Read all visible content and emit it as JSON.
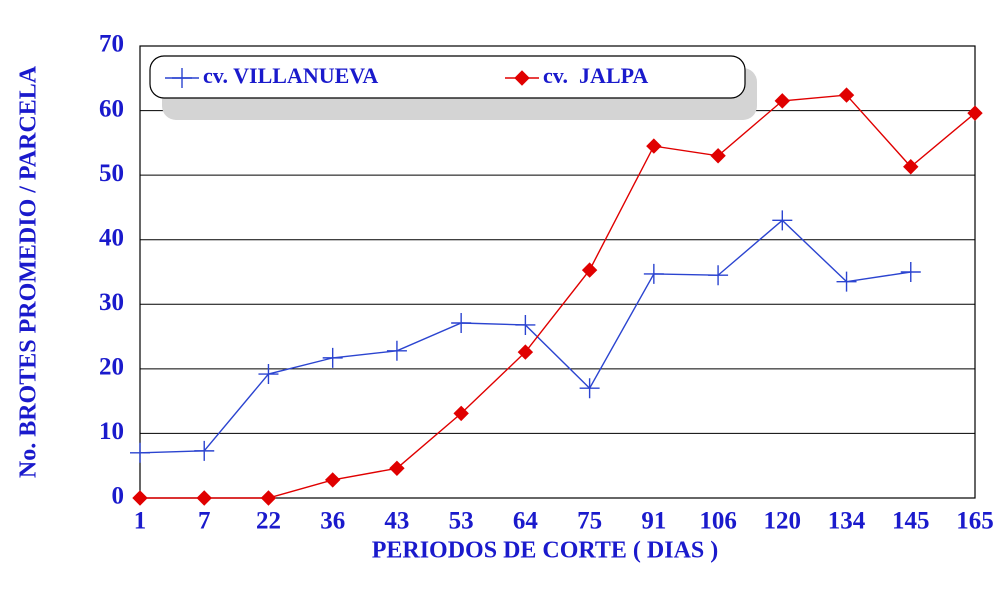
{
  "chart_data": {
    "type": "line",
    "xlabel": "PERIODOS  DE  CORTE ( DIAS )",
    "ylabel": "No. BROTES PROMEDIO / PARCELA",
    "categories": [
      "1",
      "7",
      "22",
      "36",
      "43",
      "53",
      "64",
      "75",
      "91",
      "106",
      "120",
      "134",
      "145",
      "165"
    ],
    "series": [
      {
        "name": "cv. VILLANUEVA",
        "color": "#2b44d0",
        "marker": "plus",
        "values": [
          7,
          7.3,
          19.2,
          21.7,
          22.8,
          27.1,
          26.8,
          17,
          34.7,
          34.5,
          43,
          33.5,
          35,
          null
        ]
      },
      {
        "name": "cv.  JALPA",
        "color": "#e00000",
        "marker": "diamond",
        "values": [
          0,
          0,
          0,
          2.8,
          4.6,
          13.1,
          22.6,
          35.3,
          54.5,
          53,
          61.5,
          62.4,
          51.3,
          59.6
        ]
      }
    ],
    "ylim": [
      0,
      70
    ],
    "yticks": [
      0,
      10,
      20,
      30,
      40,
      50,
      60,
      70
    ],
    "grid": true
  }
}
